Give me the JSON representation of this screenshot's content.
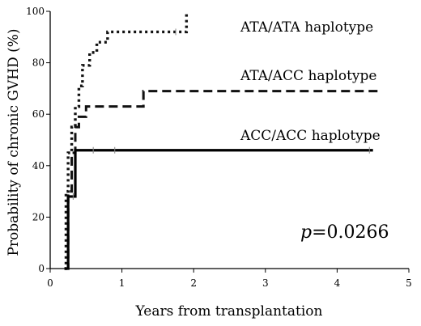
{
  "chart_data": {
    "type": "line",
    "subtype": "kaplan-meier step curves",
    "xlabel": "Years from transplantation",
    "ylabel": "Probability of chronic GVHD (%)",
    "xlim": [
      0,
      5
    ],
    "ylim": [
      0,
      100
    ],
    "x_ticks": [
      "0",
      "1",
      "2",
      "3",
      "4",
      "5"
    ],
    "y_ticks": [
      "0",
      "20",
      "40",
      "60",
      "80",
      "100"
    ],
    "grid": false,
    "annotation": {
      "italic": "p",
      "rest": "=0.0266"
    },
    "series": [
      {
        "name": "ATA/ATA haplotype",
        "style": "dotted",
        "points": [
          [
            0.2,
            0
          ],
          [
            0.22,
            30
          ],
          [
            0.25,
            45
          ],
          [
            0.3,
            55
          ],
          [
            0.35,
            63
          ],
          [
            0.4,
            71
          ],
          [
            0.45,
            79
          ],
          [
            0.55,
            84
          ],
          [
            0.65,
            88
          ],
          [
            0.8,
            92
          ],
          [
            0.9,
            92
          ],
          [
            1.8,
            92
          ],
          [
            1.9,
            100
          ]
        ],
        "censor_x": [
          1.75
        ]
      },
      {
        "name": "ATA/ACC haplotype",
        "style": "dashed",
        "points": [
          [
            0.2,
            0
          ],
          [
            0.25,
            30
          ],
          [
            0.3,
            45
          ],
          [
            0.35,
            55
          ],
          [
            0.4,
            59
          ],
          [
            0.5,
            63
          ],
          [
            1.25,
            63
          ],
          [
            1.3,
            69
          ],
          [
            4.6,
            69
          ]
        ],
        "censor_x": []
      },
      {
        "name": "ACC/ACC haplotype",
        "style": "solid",
        "points": [
          [
            0.2,
            0
          ],
          [
            0.25,
            28
          ],
          [
            0.35,
            46
          ],
          [
            4.5,
            46
          ]
        ],
        "censor_x": [
          0.32,
          0.6,
          0.9,
          4.45
        ]
      }
    ]
  }
}
